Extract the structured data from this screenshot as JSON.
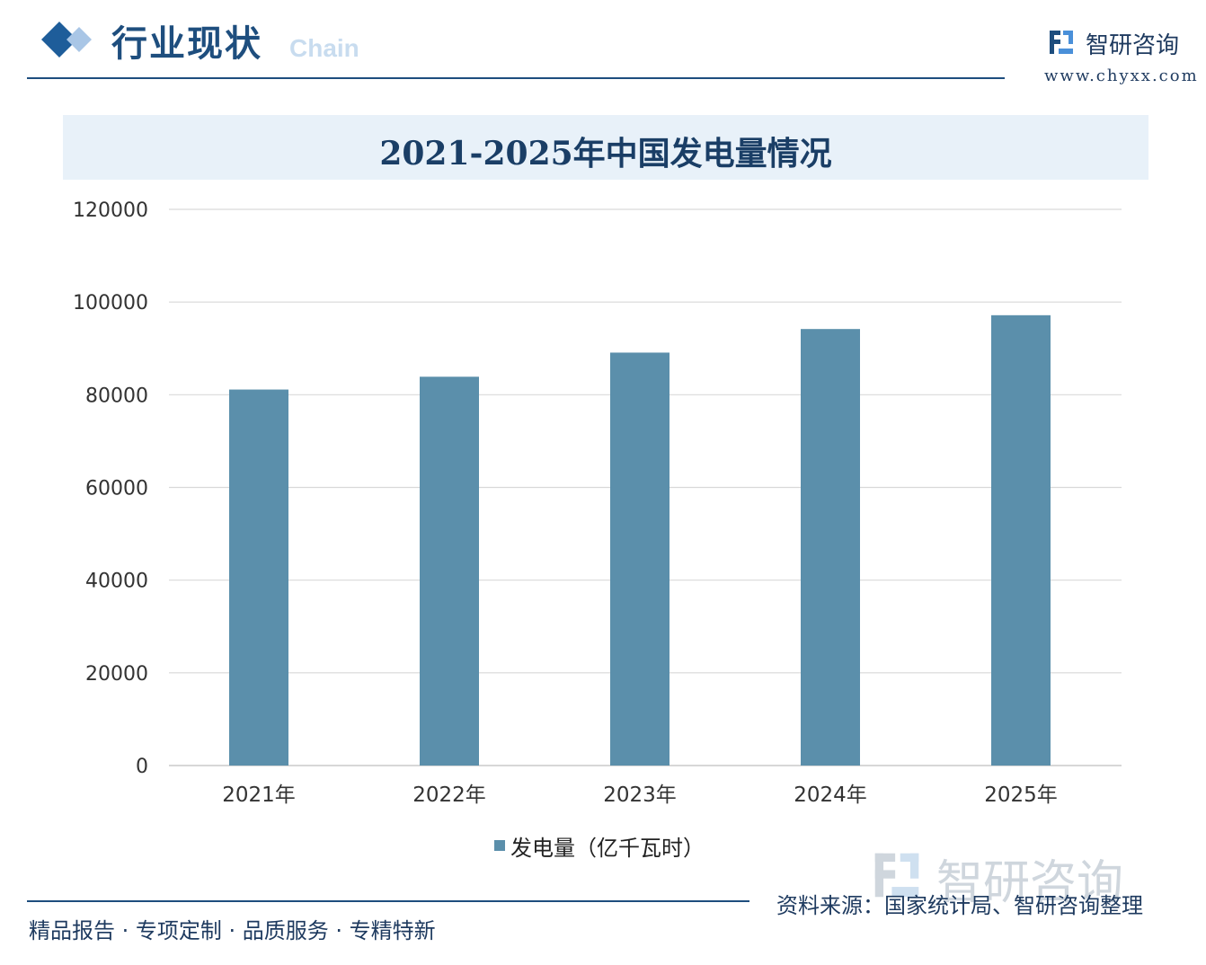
{
  "header": {
    "section_title": "行业现状",
    "section_subtitle": "Chain"
  },
  "brand": {
    "name": "智研咨询",
    "url": "www.chyxx.com"
  },
  "colors": {
    "primary": "#1e4e7e",
    "bar": "#5b8fab",
    "title_bg": "#e8f1f9",
    "grid": "#d9d9d9"
  },
  "chart_data": {
    "type": "bar",
    "title": "2021-2025年中国发电量情况",
    "categories": [
      "2021年",
      "2022年",
      "2023年",
      "2024年",
      "2025年"
    ],
    "series": [
      {
        "name": "发电量（亿千瓦时）",
        "values": [
          81122,
          83886,
          89091,
          94181,
          97159
        ]
      }
    ],
    "ylim": [
      0,
      120000
    ],
    "yticks": [
      0,
      20000,
      40000,
      60000,
      80000,
      100000,
      120000
    ],
    "grid": true,
    "legend": "bottom-center"
  },
  "footer": {
    "slogan": "精品报告 · 专项定制 · 品质服务 · 专精特新",
    "source": "资料来源：国家统计局、智研咨询整理"
  }
}
